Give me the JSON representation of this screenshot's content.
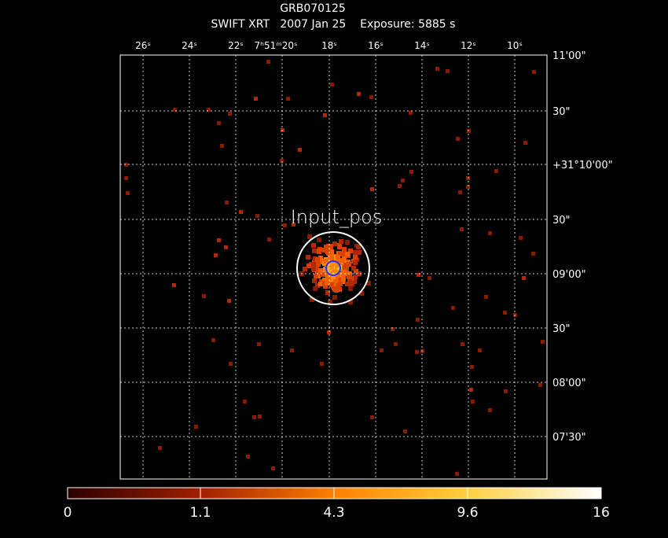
{
  "header": {
    "object": "GRB070125",
    "line": "SWIFT XRT   2007 Jan 25    Exposure: 5885 s"
  },
  "ra_labels": [
    "26ˢ",
    "24ˢ",
    "22ˢ",
    "7ʰ51ᵐ20ˢ",
    "18ˢ",
    "16ˢ",
    "14ˢ",
    "12ˢ",
    "10ˢ"
  ],
  "dec_labels": [
    "11'00\"",
    "30\"",
    "+31°10'00\"",
    "30\"",
    "09'00\"",
    "30\"",
    "08'00\"",
    "07'30\""
  ],
  "annotation": "Input_pos",
  "colorbar": {
    "labels": [
      "0",
      "1.1",
      "4.3",
      "9.6",
      "16"
    ]
  }
}
